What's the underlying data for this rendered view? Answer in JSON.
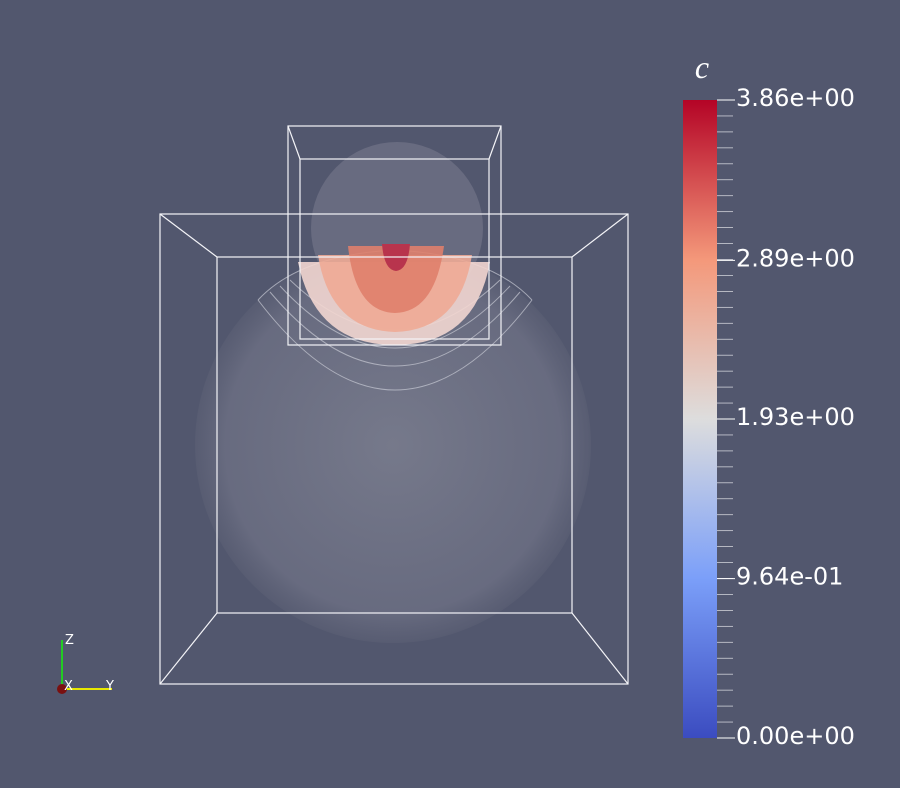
{
  "colorbar": {
    "title": "c",
    "range": [
      0,
      3.86
    ],
    "ticks": [
      {
        "value": 3.86,
        "label": "3.86e+00"
      },
      {
        "value": 2.89,
        "label": "2.89e+00"
      },
      {
        "value": 1.93,
        "label": "1.93e+00"
      },
      {
        "value": 0.964,
        "label": "9.64e-01"
      },
      {
        "value": 0,
        "label": "0.00e+00"
      }
    ]
  },
  "axes": {
    "x": "X",
    "y": "Y",
    "z": "Z"
  }
}
